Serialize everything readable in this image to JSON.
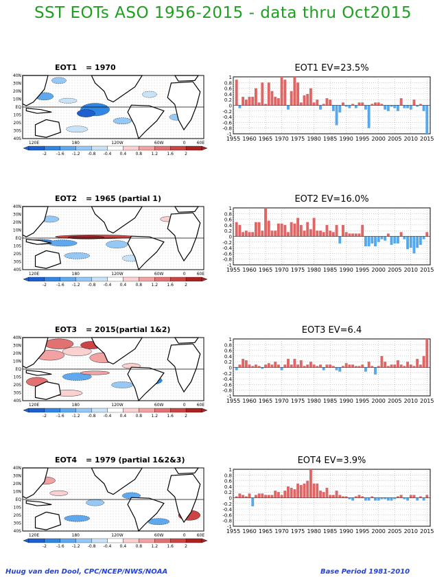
{
  "page": {
    "title": "SST EOTs ASO 1956-2015 - data thru Oct2015",
    "footer_left": "Huug van den Dool, CPC/NCEP/NWS/NOAA",
    "footer_right": "Base Period 1981-2010"
  },
  "colors": {
    "title": "#1e9e1e",
    "positive_bar": "#e06666",
    "negative_bar": "#55a8ee",
    "footer": "#2040e0",
    "colorbar": [
      "#1e5fd0",
      "#2f86e4",
      "#5fa8ee",
      "#95c8f4",
      "#c8e2f8",
      "#ffffff",
      "#fbd0d0",
      "#f2a2a2",
      "#e27272",
      "#cc4444",
      "#aa2222"
    ]
  },
  "maps": [
    {
      "title_left": "EOT1",
      "title_right": "= 1970",
      "lat_labels": [
        "40N",
        "30N",
        "20N",
        "10N",
        "EQ",
        "10S",
        "20S",
        "30S",
        "40S"
      ],
      "lon_labels": [
        "120E",
        "180",
        "120W",
        "60W",
        "0",
        "60E"
      ],
      "colorbar_labels": [
        "-2",
        "-1.6",
        "-1.2",
        "-0.8",
        "-0.4",
        "0.4",
        "0.8",
        "1.2",
        "1.6",
        "2"
      ],
      "pattern": "eot1"
    },
    {
      "title_left": "EOT2",
      "title_right": "= 1965 (partial 1)",
      "lat_labels": [
        "40N",
        "30N",
        "20N",
        "10N",
        "EQ",
        "10S",
        "20S",
        "30S",
        "40S"
      ],
      "lon_labels": [
        "120E",
        "180",
        "120W",
        "60W",
        "0",
        "60E"
      ],
      "colorbar_labels": [
        "-2",
        "-1.6",
        "-1.2",
        "-0.8",
        "-0.4",
        "0.4",
        "0.8",
        "1.2",
        "1.6",
        "2"
      ],
      "pattern": "eot2"
    },
    {
      "title_left": "EOT3",
      "title_right": "= 2015(partial 1&2)",
      "lat_labels": [
        "40N",
        "30N",
        "20N",
        "10N",
        "EQ",
        "10S",
        "20S",
        "30S",
        "40S"
      ],
      "lon_labels": [
        "120E",
        "180",
        "120W",
        "60W",
        "0",
        "60E"
      ],
      "colorbar_labels": [
        "-2",
        "-1.6",
        "-1.2",
        "-0.8",
        "-0.4",
        "0.4",
        "0.8",
        "1.2",
        "1.6",
        "2"
      ],
      "pattern": "eot3"
    },
    {
      "title_left": "EOT4",
      "title_right": "= 1979 (partial 1&2&3)",
      "lat_labels": [
        "40N",
        "30N",
        "20N",
        "10N",
        "EQ",
        "10S",
        "20S",
        "30S",
        "40S"
      ],
      "lon_labels": [
        "120E",
        "180",
        "120W",
        "60W",
        "0",
        "60E"
      ],
      "colorbar_labels": [
        "-2",
        "-1.6",
        "-1.2",
        "-0.8",
        "-0.4",
        "0.4",
        "0.8",
        "1.2",
        "1.6",
        "2"
      ],
      "pattern": "eot4"
    }
  ],
  "chart_data": [
    {
      "type": "bar",
      "title": "EOT1   EV=23.5%",
      "xlabel": "",
      "ylabel": "",
      "ylim": [
        -1,
        1
      ],
      "yticks": [
        "1",
        "0.8",
        "0.6",
        "0.4",
        "0.2",
        "0",
        "-0.2",
        "-0.4",
        "-0.6",
        "-0.8",
        "-1"
      ],
      "xtick_labels": [
        "1955",
        "1960",
        "1965",
        "1970",
        "1975",
        "1980",
        "1985",
        "1990",
        "1995",
        "2000",
        "2005",
        "2010",
        "2015"
      ],
      "grid": true,
      "x": [
        1956,
        1957,
        1958,
        1959,
        1960,
        1961,
        1962,
        1963,
        1964,
        1965,
        1966,
        1967,
        1968,
        1969,
        1970,
        1971,
        1972,
        1973,
        1974,
        1975,
        1976,
        1977,
        1978,
        1979,
        1980,
        1981,
        1982,
        1983,
        1984,
        1985,
        1986,
        1987,
        1988,
        1989,
        1990,
        1991,
        1992,
        1993,
        1994,
        1995,
        1996,
        1997,
        1998,
        1999,
        2000,
        2001,
        2002,
        2003,
        2004,
        2005,
        2006,
        2007,
        2008,
        2009,
        2010,
        2011,
        2012,
        2013,
        2014,
        2015
      ],
      "values": [
        0.9,
        -0.1,
        0.3,
        0.2,
        0.3,
        0.3,
        0.6,
        0.1,
        0.8,
        0.05,
        0.8,
        0.5,
        0.3,
        0.25,
        1.0,
        0.9,
        -0.15,
        0.5,
        1.0,
        0.8,
        0.1,
        0.35,
        0.4,
        0.6,
        0.1,
        0.2,
        -0.15,
        0.05,
        0.25,
        0.2,
        -0.2,
        -0.7,
        -0.25,
        0.1,
        -0.05,
        -0.1,
        0.05,
        -0.1,
        0.1,
        0.1,
        -0.15,
        -0.8,
        0.05,
        0.1,
        0.1,
        0.05,
        -0.15,
        -0.2,
        -0.05,
        -0.1,
        -0.2,
        0.25,
        -0.1,
        -0.1,
        -0.15,
        0.2,
        -0.05,
        0.05,
        -0.2,
        -1.0
      ]
    },
    {
      "type": "bar",
      "title": "EOT2   EV=16.0%",
      "xlabel": "",
      "ylabel": "",
      "ylim": [
        -1,
        1
      ],
      "yticks": [
        "1",
        "0.8",
        "0.6",
        "0.4",
        "0.2",
        "0",
        "-0.2",
        "-0.4",
        "-0.6",
        "-0.8",
        "-1"
      ],
      "xtick_labels": [
        "1955",
        "1960",
        "1965",
        "1970",
        "1975",
        "1980",
        "1985",
        "1990",
        "1995",
        "2000",
        "2005",
        "2010",
        "2015"
      ],
      "grid": true,
      "x": [
        1956,
        1957,
        1958,
        1959,
        1960,
        1961,
        1962,
        1963,
        1964,
        1965,
        1966,
        1967,
        1968,
        1969,
        1970,
        1971,
        1972,
        1973,
        1974,
        1975,
        1976,
        1977,
        1978,
        1979,
        1980,
        1981,
        1982,
        1983,
        1984,
        1985,
        1986,
        1987,
        1988,
        1989,
        1990,
        1991,
        1992,
        1993,
        1994,
        1995,
        1996,
        1997,
        1998,
        1999,
        2000,
        2001,
        2002,
        2003,
        2004,
        2005,
        2006,
        2007,
        2008,
        2009,
        2010,
        2011,
        2012,
        2013,
        2014,
        2015
      ],
      "values": [
        0.5,
        0.4,
        0.15,
        0.2,
        0.15,
        0.15,
        0.5,
        0.5,
        0.2,
        1.0,
        0.55,
        0.2,
        0.2,
        0.45,
        0.45,
        0.4,
        0.15,
        0.5,
        0.45,
        0.65,
        0.4,
        0.2,
        0.5,
        0.25,
        0.65,
        0.2,
        0.2,
        0.15,
        0.4,
        0.2,
        0.15,
        0.4,
        -0.25,
        0.4,
        0.15,
        0.1,
        0.1,
        0.1,
        0.1,
        0.4,
        -0.35,
        -0.35,
        -0.25,
        -0.35,
        -0.2,
        -0.1,
        -0.15,
        0.1,
        -0.3,
        -0.25,
        -0.25,
        0.15,
        -0.1,
        -0.45,
        -0.4,
        -0.6,
        -0.4,
        -0.3,
        -0.1,
        0.15
      ]
    },
    {
      "type": "bar",
      "title": "EOT3   EV=6.4",
      "xlabel": "",
      "ylabel": "",
      "ylim": [
        -1,
        1
      ],
      "yticks": [
        "1",
        "0.8",
        "0.6",
        "0.4",
        "0.2",
        "0",
        "-0.2",
        "-0.4",
        "-0.6",
        "-0.8",
        "-1"
      ],
      "xtick_labels": [
        "1955",
        "1960",
        "1965",
        "1970",
        "1975",
        "1980",
        "1985",
        "1990",
        "1995",
        "2000",
        "2005",
        "2010",
        "2015"
      ],
      "grid": true,
      "x": [
        1956,
        1957,
        1958,
        1959,
        1960,
        1961,
        1962,
        1963,
        1964,
        1965,
        1966,
        1967,
        1968,
        1969,
        1970,
        1971,
        1972,
        1973,
        1974,
        1975,
        1976,
        1977,
        1978,
        1979,
        1980,
        1981,
        1982,
        1983,
        1984,
        1985,
        1986,
        1987,
        1988,
        1989,
        1990,
        1991,
        1992,
        1993,
        1994,
        1995,
        1996,
        1997,
        1998,
        1999,
        2000,
        2001,
        2002,
        2003,
        2004,
        2005,
        2006,
        2007,
        2008,
        2009,
        2010,
        2011,
        2012,
        2013,
        2014,
        2015
      ],
      "values": [
        -0.1,
        0.1,
        0.3,
        0.25,
        0.1,
        0.05,
        0.1,
        0.05,
        -0.05,
        0.1,
        0.15,
        0.1,
        0.2,
        0.1,
        -0.1,
        0.1,
        0.3,
        0.1,
        0.3,
        0.1,
        0.25,
        0.05,
        0.1,
        0.2,
        0.1,
        0.05,
        0.1,
        -0.1,
        0.1,
        0.1,
        0.05,
        -0.1,
        -0.15,
        0.05,
        0.15,
        0.1,
        0.1,
        0.05,
        0.05,
        0.1,
        -0.15,
        0.2,
        0.05,
        -0.25,
        0.05,
        0.4,
        0.2,
        0.05,
        0.1,
        0.1,
        0.25,
        0.1,
        0.05,
        0.2,
        0.1,
        0.05,
        0.3,
        0.1,
        0.4,
        1.0
      ]
    },
    {
      "type": "bar",
      "title": "EOT4   EV=3.9%",
      "xlabel": "",
      "ylabel": "",
      "ylim": [
        -1,
        1
      ],
      "yticks": [
        "1",
        "0.8",
        "0.6",
        "0.4",
        "0.2",
        "0",
        "-0.2",
        "-0.4",
        "-0.6",
        "-0.8",
        "-1"
      ],
      "xtick_labels": [
        "1955",
        "1960",
        "1965",
        "1970",
        "1975",
        "1980",
        "1985",
        "1990",
        "1995",
        "2000",
        "2005",
        "2010",
        "2015"
      ],
      "grid": true,
      "x": [
        1956,
        1957,
        1958,
        1959,
        1960,
        1961,
        1962,
        1963,
        1964,
        1965,
        1966,
        1967,
        1968,
        1969,
        1970,
        1971,
        1972,
        1973,
        1974,
        1975,
        1976,
        1977,
        1978,
        1979,
        1980,
        1981,
        1982,
        1983,
        1984,
        1985,
        1986,
        1987,
        1988,
        1989,
        1990,
        1991,
        1992,
        1993,
        1994,
        1995,
        1996,
        1997,
        1998,
        1999,
        2000,
        2001,
        2002,
        2003,
        2004,
        2005,
        2006,
        2007,
        2008,
        2009,
        2010,
        2011,
        2012,
        2013,
        2014,
        2015
      ],
      "values": [
        0.05,
        0.15,
        0.1,
        0.05,
        0.15,
        -0.3,
        0.1,
        0.15,
        0.15,
        0.1,
        0.1,
        0.1,
        0.25,
        0.2,
        0.1,
        0.25,
        0.4,
        0.35,
        0.3,
        0.5,
        0.45,
        0.5,
        0.6,
        1.0,
        0.5,
        0.5,
        0.25,
        0.2,
        0.35,
        0.1,
        0.1,
        0.25,
        0.1,
        0.05,
        0.05,
        -0.05,
        -0.1,
        0.05,
        0.1,
        0.05,
        -0.1,
        -0.1,
        0.05,
        -0.1,
        -0.1,
        -0.05,
        -0.05,
        -0.1,
        -0.1,
        -0.05,
        0.05,
        0.1,
        -0.05,
        -0.1,
        0.1,
        0.1,
        -0.1,
        0.05,
        -0.1,
        0.1
      ]
    }
  ]
}
